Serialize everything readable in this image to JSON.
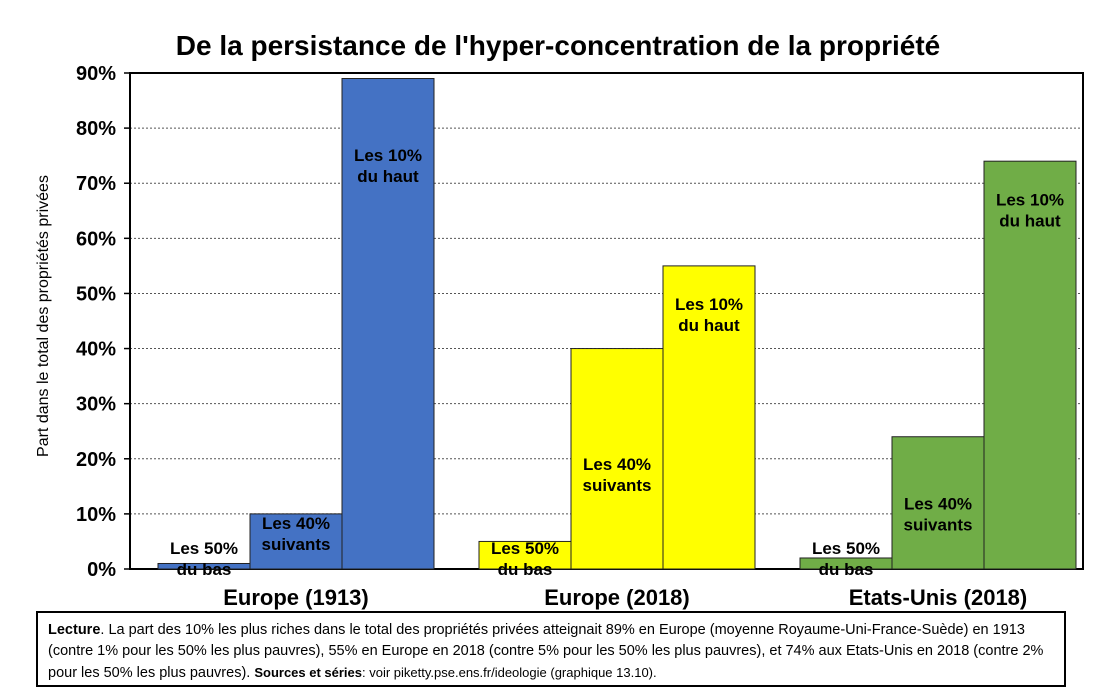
{
  "chart_data": {
    "type": "bar",
    "title": "De la persistance de l'hyper-concentration de la propriété",
    "ylabel": "Part dans le total des propriétés privées",
    "xlabel": "",
    "ylim": [
      0,
      90
    ],
    "yticks": [
      "0%",
      "10%",
      "20%",
      "30%",
      "40%",
      "50%",
      "60%",
      "70%",
      "80%",
      "90%"
    ],
    "grid": true,
    "groups": [
      {
        "name": "Europe (1913)",
        "color": "#4472C4",
        "bars": [
          {
            "label_line1": "Les 50%",
            "label_line2": "du bas",
            "value": 1
          },
          {
            "label_line1": "Les 40%",
            "label_line2": "suivants",
            "value": 10
          },
          {
            "label_line1": "Les 10%",
            "label_line2": "du haut",
            "value": 89
          }
        ]
      },
      {
        "name": "Europe (2018)",
        "color": "#FFFF00",
        "bars": [
          {
            "label_line1": "Les 50%",
            "label_line2": "du bas",
            "value": 5
          },
          {
            "label_line1": "Les 40%",
            "label_line2": "suivants",
            "value": 40
          },
          {
            "label_line1": "Les 10%",
            "label_line2": "du haut",
            "value": 55
          }
        ]
      },
      {
        "name": "Etats-Unis (2018)",
        "color": "#70AD47",
        "bars": [
          {
            "label_line1": "Les 50%",
            "label_line2": "du bas",
            "value": 2
          },
          {
            "label_line1": "Les 40%",
            "label_line2": "suivants",
            "value": 24
          },
          {
            "label_line1": "Les 10%",
            "label_line2": "du haut",
            "value": 74
          }
        ]
      }
    ]
  },
  "note": {
    "lecture_label": "Lecture",
    "lecture_text": ". La part des 10% les plus riches dans le total des propriétés privées atteignait 89% en Europe (moyenne Royaume-Uni-France-Suède) en 1913 (contre 1% pour les 50% les plus pauvres), 55% en Europe en 2018 (contre 5% pour les 50% les plus pauvres), et 74% aux Etats-Unis en 2018 (contre 2% pour les 50% les plus pauvres). ",
    "sources_label": "Sources et séries",
    "sources_text": ": voir piketty.pse.ens.fr/ideologie (graphique 13.10)."
  }
}
